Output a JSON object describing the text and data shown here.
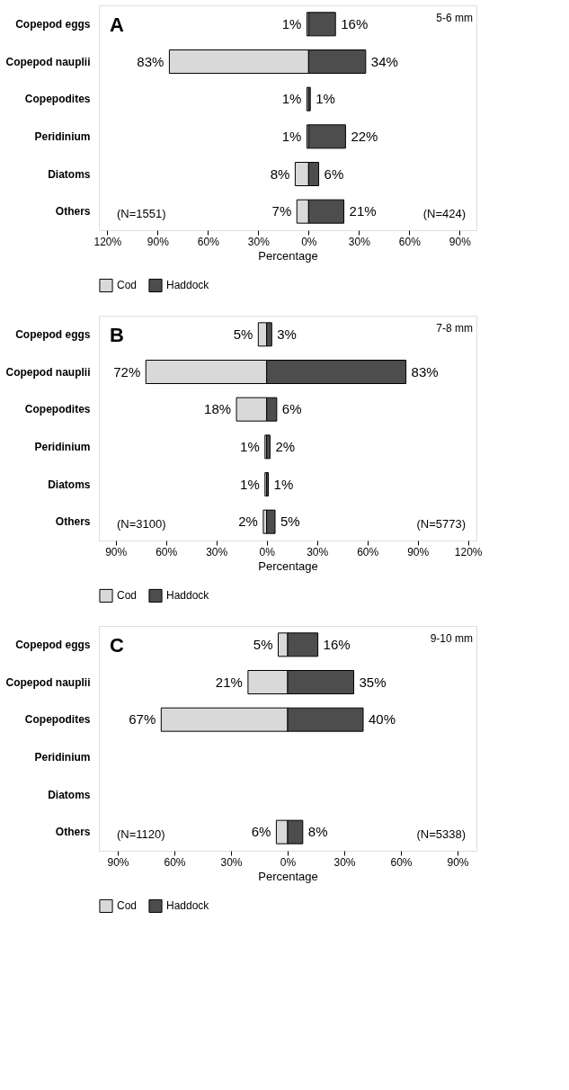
{
  "chart_data": [
    {
      "type": "bar",
      "orientation": "horizontal",
      "xlabel": "Percentage",
      "legend": "bottom",
      "categories": [
        "Copepod eggs",
        "Copepod nauplii",
        "Copepodites",
        "Peridinium",
        "Diatoms",
        "Others"
      ],
      "series": [
        {
          "name": "Cod",
          "color": "#d9d9d9",
          "values": [
            1,
            83,
            1,
            1,
            8,
            7
          ],
          "base": [
            -1,
            -83,
            -1,
            -1,
            -8,
            -7
          ],
          "value_labels": [
            "1%",
            "83%",
            "1%",
            "1%",
            "8%",
            "7%"
          ]
        },
        {
          "name": "Haddock",
          "color": "#4d4d4d",
          "values": [
            16,
            34,
            1,
            22,
            6,
            21
          ],
          "base": [
            0,
            0,
            0,
            0,
            0,
            0
          ],
          "value_labels": [
            "16%",
            "34%",
            "1%",
            "22%",
            "6%",
            "21%"
          ]
        }
      ],
      "xlim": [
        -125,
        100
      ],
      "xticks": [
        {
          "value": -120,
          "label": "120%"
        },
        {
          "value": -90,
          "label": "90%"
        },
        {
          "value": -60,
          "label": "60%"
        },
        {
          "value": -30,
          "label": "30%"
        },
        {
          "value": 0,
          "label": "0%"
        },
        {
          "value": 30,
          "label": "30%"
        },
        {
          "value": 60,
          "label": "60%"
        },
        {
          "value": 90,
          "label": "90%"
        }
      ],
      "annotations": [
        "A",
        "5-6 mm",
        "(N=1551)",
        "(N=424)"
      ]
    },
    {
      "type": "bar",
      "orientation": "horizontal",
      "xlabel": "Percentage",
      "legend": "bottom",
      "categories": [
        "Copepod eggs",
        "Copepod nauplii",
        "Copepodites",
        "Peridinium",
        "Diatoms",
        "Others"
      ],
      "series": [
        {
          "name": "Cod",
          "color": "#d9d9d9",
          "values": [
            5,
            72,
            18,
            1,
            1,
            2
          ],
          "base": [
            -5,
            -72,
            -18,
            -1,
            -1,
            -2
          ],
          "value_labels": [
            "5%",
            "72%",
            "18%",
            "1%",
            "1%",
            "2%"
          ]
        },
        {
          "name": "Haddock",
          "color": "#4d4d4d",
          "values": [
            3,
            83,
            6,
            2,
            1,
            5
          ],
          "base": [
            0,
            0,
            0,
            0,
            0,
            0
          ],
          "value_labels": [
            "3%",
            "83%",
            "6%",
            "2%",
            "1%",
            "5%"
          ]
        }
      ],
      "xlim": [
        -100,
        125
      ],
      "xticks": [
        {
          "value": -90,
          "label": "90%"
        },
        {
          "value": -60,
          "label": "60%"
        },
        {
          "value": -30,
          "label": "30%"
        },
        {
          "value": 0,
          "label": "0%"
        },
        {
          "value": 30,
          "label": "30%"
        },
        {
          "value": 60,
          "label": "60%"
        },
        {
          "value": 90,
          "label": "90%"
        },
        {
          "value": 120,
          "label": "120%"
        }
      ],
      "annotations": [
        "B",
        "7-8 mm",
        "(N=3100)",
        "(N=5773)"
      ]
    },
    {
      "type": "bar",
      "orientation": "horizontal",
      "xlabel": "Percentage",
      "legend": "bottom",
      "categories": [
        "Copepod eggs",
        "Copepod nauplii",
        "Copepodites",
        "Peridinium",
        "Diatoms",
        "Others"
      ],
      "series": [
        {
          "name": "Cod",
          "color": "#d9d9d9",
          "values": [
            5,
            21,
            67,
            null,
            null,
            6
          ],
          "base": [
            -5,
            -21,
            -67,
            null,
            null,
            -6
          ],
          "value_labels": [
            "5%",
            "21%",
            "67%",
            null,
            null,
            "6%"
          ]
        },
        {
          "name": "Haddock",
          "color": "#4d4d4d",
          "values": [
            16,
            35,
            40,
            null,
            null,
            8
          ],
          "base": [
            0,
            0,
            0,
            null,
            null,
            0
          ],
          "value_labels": [
            "16%",
            "35%",
            "40%",
            null,
            null,
            "8%"
          ]
        }
      ],
      "xlim": [
        -100,
        100
      ],
      "xticks": [
        {
          "value": -90,
          "label": "90%"
        },
        {
          "value": -60,
          "label": "60%"
        },
        {
          "value": -30,
          "label": "30%"
        },
        {
          "value": 0,
          "label": "0%"
        },
        {
          "value": 30,
          "label": "30%"
        },
        {
          "value": 60,
          "label": "60%"
        },
        {
          "value": 90,
          "label": "90%"
        }
      ],
      "annotations": [
        "C",
        "9-10 mm",
        "(N=1120)",
        "(N=5338)"
      ]
    }
  ]
}
